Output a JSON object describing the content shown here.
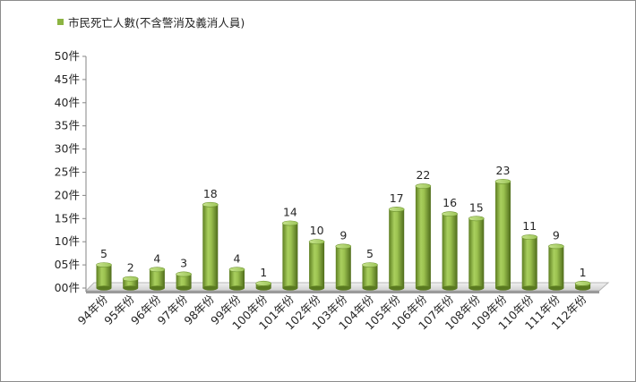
{
  "chart_data": {
    "type": "bar",
    "categories": [
      "94年份",
      "95年份",
      "96年份",
      "97年份",
      "98年份",
      "99年份",
      "100年份",
      "101年份",
      "102年份",
      "103年份",
      "104年份",
      "105年份",
      "106年份",
      "107年份",
      "108年份",
      "109年份",
      "110年份",
      "111年份",
      "112年份"
    ],
    "series": [
      {
        "name": "市民死亡人數(不含警消及義消人員)",
        "values": [
          5,
          2,
          4,
          3,
          18,
          4,
          1,
          14,
          10,
          9,
          5,
          17,
          22,
          16,
          15,
          23,
          11,
          9,
          1
        ],
        "color": "#8cb442"
      }
    ],
    "y_ticks": [
      "00件",
      "05件",
      "10件",
      "15件",
      "20件",
      "25件",
      "30件",
      "35件",
      "40件",
      "45件",
      "50件"
    ],
    "ylim": [
      0,
      50
    ],
    "legend_position": "top-left",
    "grid": false,
    "style": "3d-cylinder"
  }
}
